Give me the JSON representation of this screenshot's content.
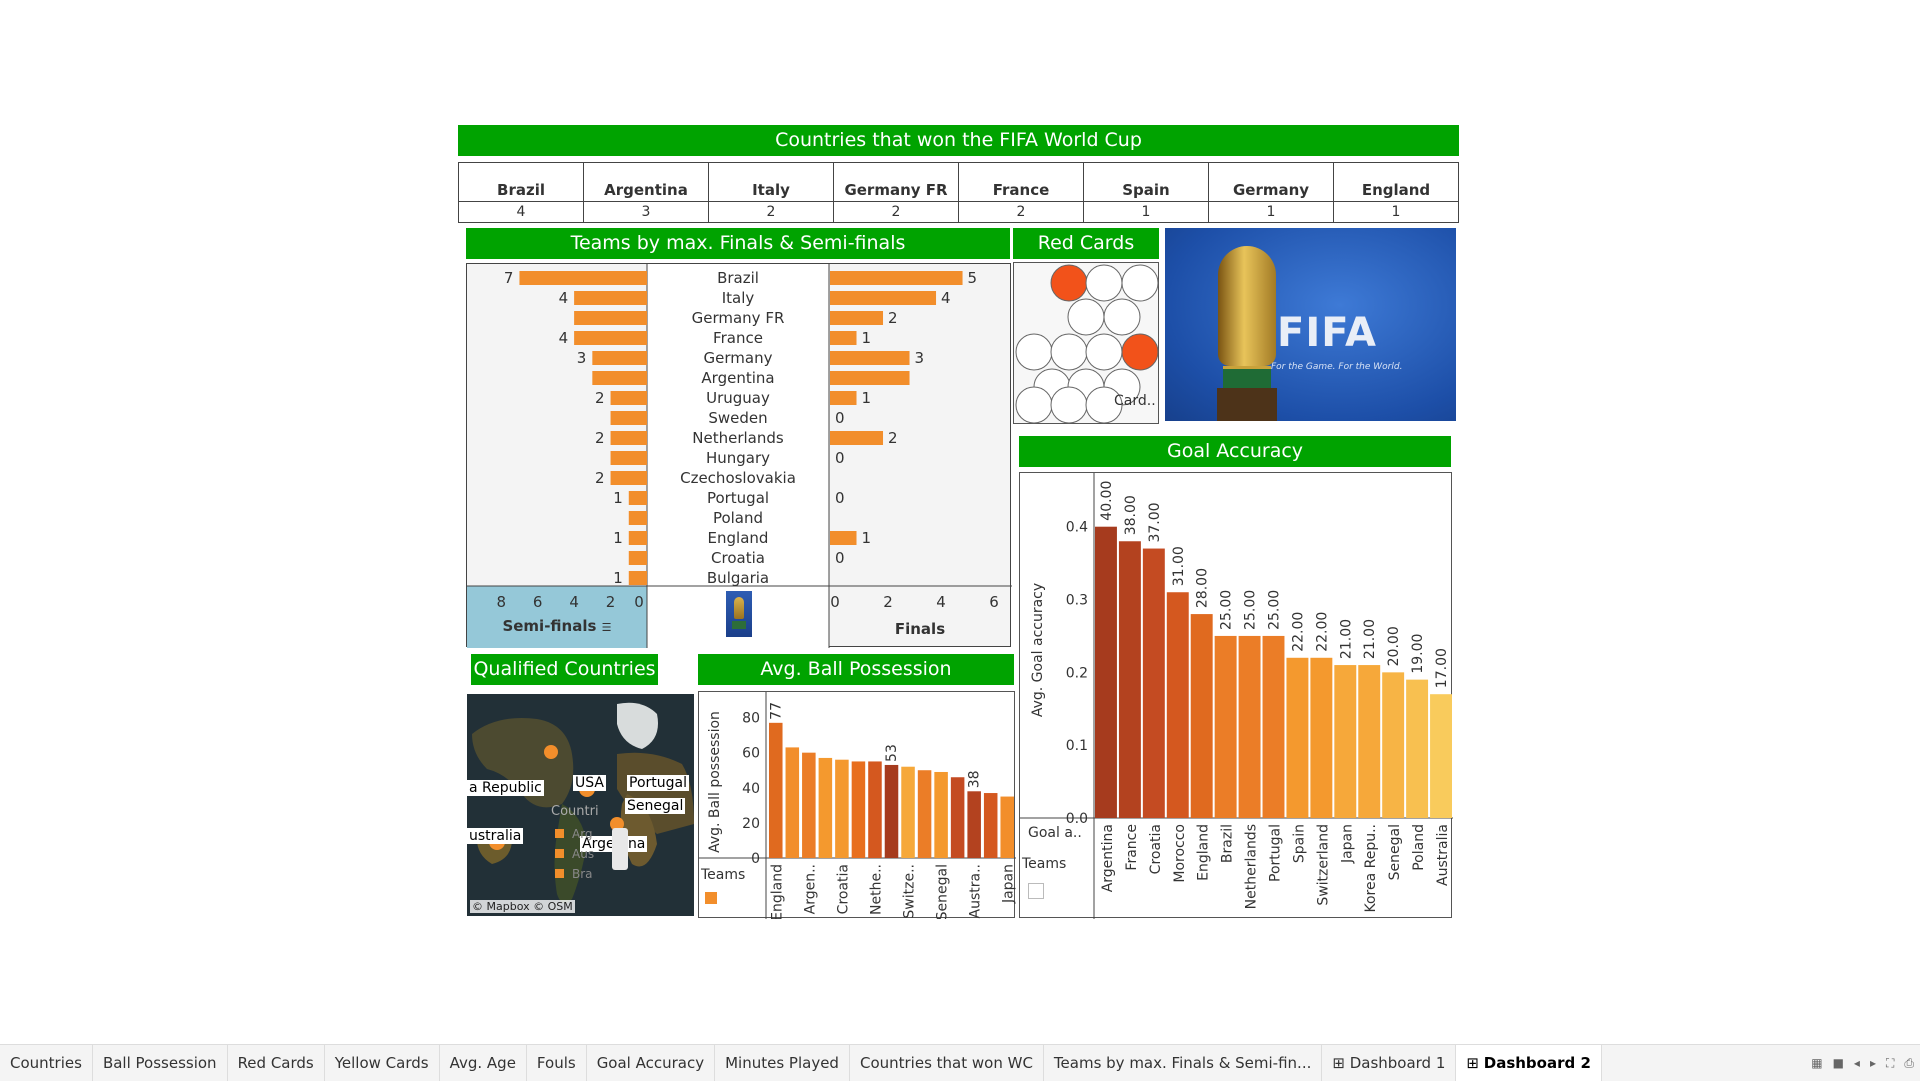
{
  "winners": {
    "title": "Countries that won the FIFA World Cup",
    "teams": [
      {
        "name": "Brazil",
        "wins": "4"
      },
      {
        "name": "Argentina",
        "wins": "3"
      },
      {
        "name": "Italy",
        "wins": "2"
      },
      {
        "name": "Germany FR",
        "wins": "2"
      },
      {
        "name": "France",
        "wins": "2"
      },
      {
        "name": "Spain",
        "wins": "1"
      },
      {
        "name": "Germany",
        "wins": "1"
      },
      {
        "name": "England",
        "wins": "1"
      }
    ]
  },
  "finals_semis": {
    "title": "Teams by max. Finals & Semi-finals",
    "semi_label": "Semi-finals",
    "finals_label": "Finals",
    "chart_data": {
      "type": "bar",
      "categories": [
        "Brazil",
        "Italy",
        "Germany FR",
        "France",
        "Germany",
        "Argentina",
        "Uruguay",
        "Sweden",
        "Netherlands",
        "Hungary",
        "Czechoslovakia",
        "Portugal",
        "Poland",
        "England",
        "Croatia",
        "Bulgaria"
      ],
      "series": [
        {
          "name": "Semi-finals",
          "values": [
            7,
            4,
            4,
            4,
            3,
            3,
            2,
            2,
            2,
            2,
            2,
            1,
            1,
            1,
            1,
            1
          ],
          "labels": [
            "7",
            "4",
            "",
            "4",
            "3",
            "",
            "2",
            "",
            "2",
            "",
            "2",
            "1",
            "",
            "1",
            "",
            "1"
          ]
        },
        {
          "name": "Finals",
          "values": [
            5,
            4,
            2,
            1,
            3,
            3,
            1,
            0,
            2,
            0,
            0,
            0,
            0,
            1,
            0,
            0
          ],
          "labels": [
            "5",
            "4",
            "2",
            "1",
            "3",
            "",
            "1",
            "0",
            "2",
            "0",
            "",
            "0",
            "",
            "1",
            "0",
            ""
          ]
        }
      ],
      "semi_ticks": [
        "8",
        "6",
        "4",
        "2",
        "0"
      ],
      "finals_ticks": [
        "0",
        "2",
        "4",
        "6"
      ],
      "semi_xlim": [
        0,
        9
      ],
      "finals_xlim": [
        0,
        6.3
      ],
      "color": "#f28e2b"
    }
  },
  "red_cards": {
    "title": "Red Cards",
    "card_label": "Card..",
    "rows": [
      [
        1,
        0,
        0
      ],
      [
        0,
        0
      ],
      [
        0,
        0,
        0,
        1
      ],
      [
        0,
        0,
        0
      ],
      [
        0,
        0,
        0
      ]
    ],
    "red_color": "#f2521a"
  },
  "fifa_image": {
    "logo_text": "FIFA",
    "tagline": "For the Game. For the World."
  },
  "goal_accuracy": {
    "title": "Goal Accuracy",
    "filter_label": "Goal a..",
    "teams_label": "Teams",
    "chart_data": {
      "type": "bar",
      "categories": [
        "Argentina",
        "France",
        "Croatia",
        "Morocco",
        "England",
        "Brazil",
        "Netherlands",
        "Portugal",
        "Spain",
        "Switzerland",
        "Japan",
        "Korea Repu..",
        "Senegal",
        "Poland",
        "Australia"
      ],
      "values": [
        0.4,
        0.38,
        0.37,
        0.31,
        0.28,
        0.25,
        0.25,
        0.25,
        0.22,
        0.22,
        0.21,
        0.21,
        0.2,
        0.19,
        0.17
      ],
      "labels": [
        "40.00",
        "38.00",
        "37.00",
        "31.00",
        "28.00",
        "25.00",
        "25.00",
        "25.00",
        "22.00",
        "22.00",
        "21.00",
        "21.00",
        "20.00",
        "19.00",
        "17.00"
      ],
      "ylabel": "Avg. Goal accuracy",
      "ylim": [
        0,
        0.46
      ],
      "yticks": [
        "0.0",
        "0.1",
        "0.2",
        "0.3",
        "0.4"
      ]
    }
  },
  "qualified": {
    "title": "Qualified Countries",
    "labels": [
      "a Republic",
      "USA",
      "Portugal",
      "Senegal",
      "ustralia",
      "Arge   na"
    ],
    "legend_title": "Countri",
    "legend_items": [
      "Arg",
      "Aus",
      "Bra"
    ],
    "attribution": "© Mapbox © OSM"
  },
  "possession": {
    "title": "Avg. Ball Possession",
    "teams_label": "Teams",
    "chart_data": {
      "type": "bar",
      "categories": [
        "England",
        "",
        "Argen..",
        "",
        "Croatia",
        "",
        "Nethe..",
        "",
        "Switze..",
        "",
        "Senegal",
        "",
        "Austra..",
        "",
        "Japan"
      ],
      "values": [
        77,
        63,
        60,
        57,
        56,
        55,
        55,
        53,
        52,
        50,
        49,
        46,
        38,
        37,
        35
      ],
      "labels": [
        "77",
        "",
        "",
        "",
        "",
        "",
        "",
        "53",
        "",
        "",
        "",
        "",
        "38",
        "",
        ""
      ],
      "ylabel": "Avg. Ball possession",
      "ylim": [
        0,
        90
      ],
      "yticks": [
        "0",
        "20",
        "40",
        "60",
        "80"
      ]
    }
  },
  "tabs": [
    {
      "label": "Countries"
    },
    {
      "label": "Ball Possession"
    },
    {
      "label": "Red Cards"
    },
    {
      "label": "Yellow Cards"
    },
    {
      "label": "Avg. Age"
    },
    {
      "label": "Fouls"
    },
    {
      "label": "Goal Accuracy"
    },
    {
      "label": "Minutes Played"
    },
    {
      "label": "Countries that won WC"
    },
    {
      "label": "Teams by max. Finals & Semi-fin..."
    },
    {
      "label": "Dashboard 1",
      "icon": "dashboard-icon"
    },
    {
      "label": "Dashboard 2",
      "icon": "dashboard-icon",
      "active": true
    }
  ]
}
